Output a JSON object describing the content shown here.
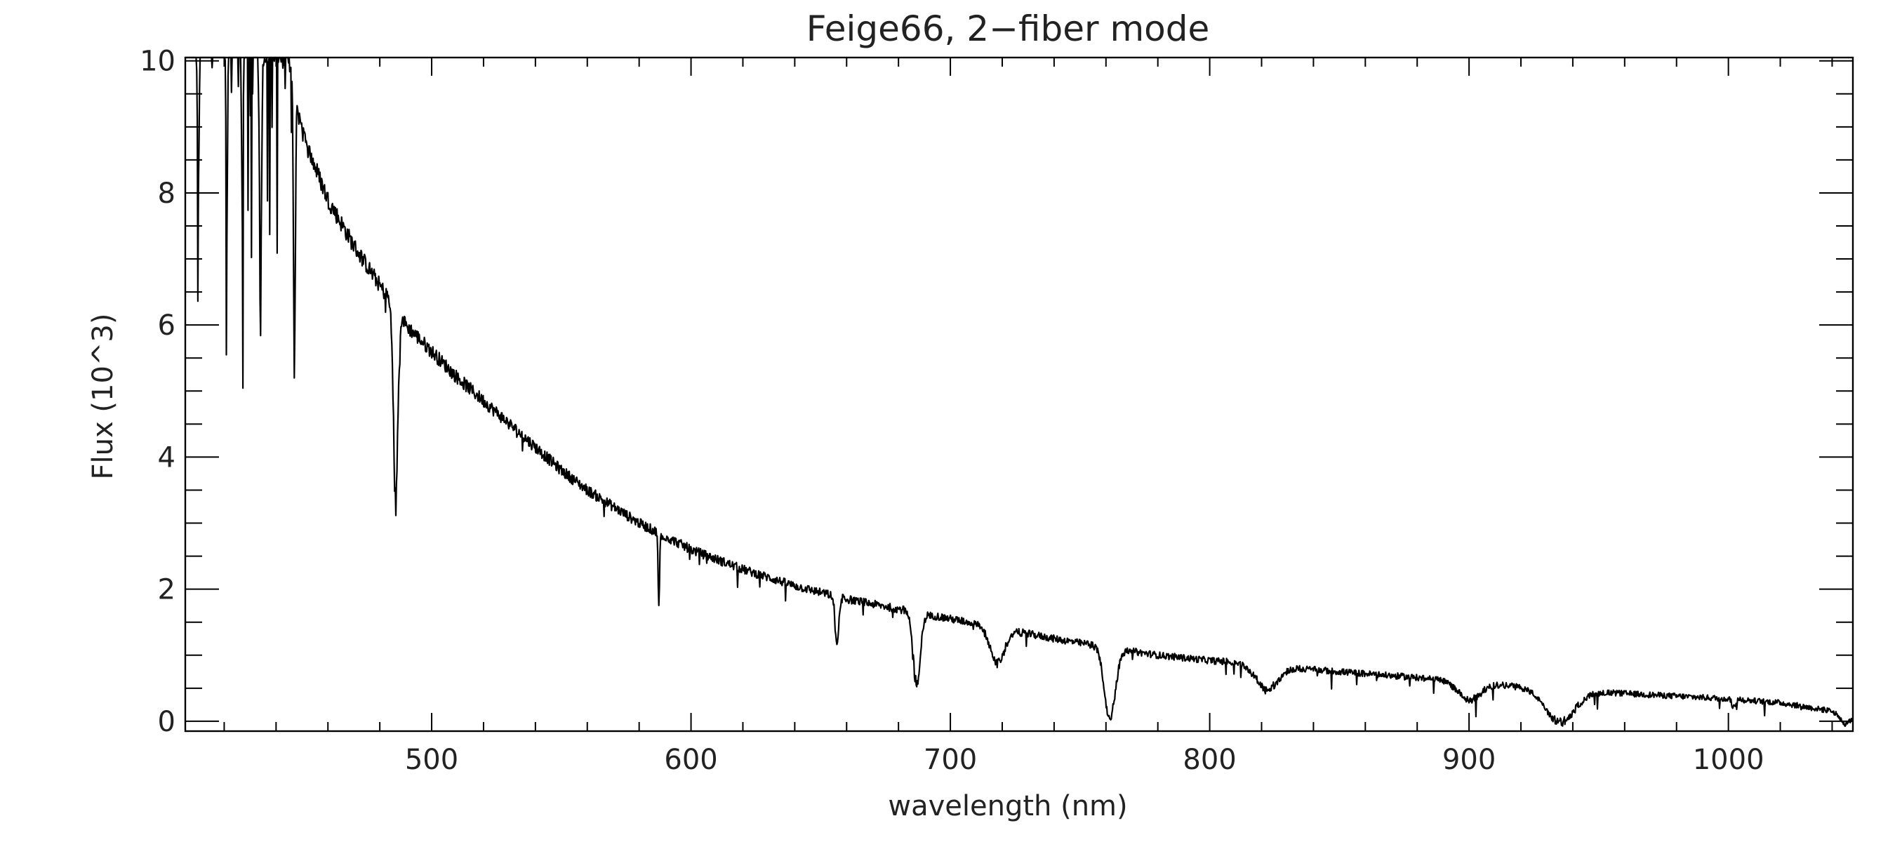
{
  "chart_data": {
    "type": "line",
    "title": "Feige66, 2−fiber mode",
    "xlabel": "wavelength (nm)",
    "ylabel": "Flux (10^3)",
    "xlim": [
      405,
      1048
    ],
    "ylim": [
      -0.15,
      10.05
    ],
    "grid": false,
    "legend": "none",
    "line_color": "#000000",
    "xticks": [
      500,
      600,
      700,
      800,
      900,
      1000
    ],
    "xtick_labels": [
      "500",
      "600",
      "700",
      "800",
      "900",
      "1000"
    ],
    "yticks": [
      0,
      2,
      4,
      6,
      8,
      10
    ],
    "ytick_labels": [
      "0",
      "2",
      "4",
      "6",
      "8",
      "10"
    ],
    "series": [
      {
        "continuum": {
          "x": [
            405,
            412,
            420,
            430,
            440,
            445,
            450,
            460,
            470,
            480,
            490,
            500,
            510,
            520,
            530,
            540,
            550,
            560,
            570,
            580,
            590,
            600,
            620,
            640,
            660,
            680,
            700,
            720,
            740,
            760,
            780,
            800,
            820,
            840,
            860,
            880,
            900,
            920,
            940,
            960,
            980,
            1000,
            1020,
            1048
          ],
          "y": [
            10.6,
            10.4,
            10.3,
            10.2,
            10.1,
            10.0,
            8.9,
            7.9,
            7.2,
            6.6,
            6.0,
            5.6,
            5.2,
            4.85,
            4.5,
            4.15,
            3.8,
            3.5,
            3.25,
            3.0,
            2.8,
            2.6,
            2.3,
            2.05,
            1.85,
            1.7,
            1.55,
            1.4,
            1.25,
            1.12,
            1.0,
            0.92,
            0.86,
            0.78,
            0.72,
            0.66,
            0.6,
            0.52,
            0.46,
            0.42,
            0.38,
            0.34,
            0.28,
            0.1
          ]
        },
        "absorption": [
          {
            "center": 486.1,
            "width": 1.2,
            "min": 3.15
          },
          {
            "center": 447.1,
            "width": 0.5,
            "min": 5.15
          },
          {
            "center": 434.0,
            "width": 0.6,
            "min": 6.35
          },
          {
            "center": 421.0,
            "width": 0.4,
            "min": 6.9
          },
          {
            "center": 410.0,
            "width": 0.5,
            "min": 7.8
          },
          {
            "center": 427.0,
            "width": 0.4,
            "min": 7.4
          },
          {
            "center": 587.6,
            "width": 0.4,
            "min": 1.7
          },
          {
            "center": 656.3,
            "width": 1.0,
            "min": 1.1
          },
          {
            "center": 687.0,
            "width": 2.0,
            "min": 0.45
          },
          {
            "center": 718.0,
            "width": 4.0,
            "min": 0.85
          },
          {
            "center": 761.5,
            "width": 3.0,
            "min": -0.05
          },
          {
            "center": 822.0,
            "width": 6.0,
            "min": 0.45
          },
          {
            "center": 900.0,
            "width": 6.0,
            "min": 0.3
          },
          {
            "center": 935.0,
            "width": 8.0,
            "min": -0.05
          },
          {
            "center": 1002.0,
            "width": 1.0,
            "min": 0.2
          },
          {
            "center": 1045.0,
            "width": 3.0,
            "min": -0.05
          }
        ]
      }
    ]
  }
}
